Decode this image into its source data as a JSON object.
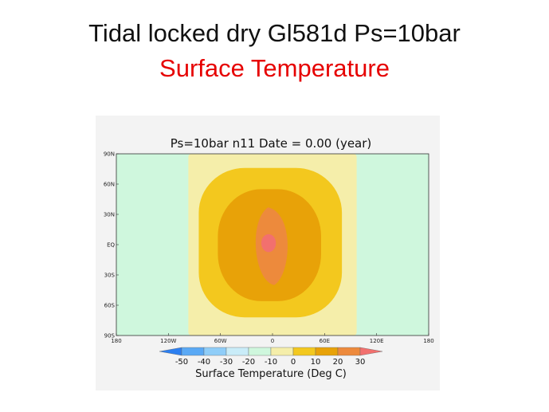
{
  "slide": {
    "title": "Tidal locked dry Gl581d  Ps=10bar",
    "subtitle": "Surface Temperature",
    "title_color": "#111111",
    "subtitle_color": "#e60000"
  },
  "chart_data": {
    "type": "heatmap",
    "title": "Ps=10bar n11    Date = 0.00 (year)",
    "x_ticks": [
      "180",
      "120W",
      "60W",
      "0",
      "60E",
      "120E",
      "180"
    ],
    "y_ticks": [
      "90N",
      "60N",
      "30N",
      "EQ",
      "30S",
      "60S",
      "90S"
    ],
    "x_range_deg": [
      -180,
      180
    ],
    "y_range_deg": [
      -90,
      90
    ],
    "colorbar": {
      "title": "Surface Temperature (Deg C)",
      "labels": [
        "-50",
        "-40",
        "-30",
        "-20",
        "-10",
        "0",
        "10",
        "20",
        "30"
      ],
      "levels": [
        -50,
        -40,
        -30,
        -20,
        -10,
        0,
        10,
        20,
        30
      ],
      "colors": [
        "#2c7ff0",
        "#5aa9f5",
        "#8fcdf8",
        "#c9ecf8",
        "#cff7dd",
        "#f5eeaa",
        "#f3c81e",
        "#e8a208",
        "#ed8a3c",
        "#f2706e"
      ]
    },
    "contours": [
      {
        "level": "-20 to -10",
        "color": "#cff7dd",
        "lon_range": [
          -180,
          180
        ],
        "lat_range": [
          -90,
          90
        ]
      },
      {
        "level": "-10 to 0",
        "color": "#f5eeaa",
        "lon_range": [
          -97,
          97
        ],
        "lat_range": [
          -90,
          90
        ]
      },
      {
        "level": "0 to 10",
        "color": "#f3c81e",
        "lon_range": [
          -85,
          80
        ],
        "lat_range": [
          -72,
          76
        ]
      },
      {
        "level": "10 to 20",
        "color": "#e8a208",
        "lon_range": [
          -63,
          56
        ],
        "lat_range": [
          -56,
          55
        ]
      },
      {
        "level": "20 to 30",
        "color": "#ed8a3c",
        "lon_range": [
          -23,
          20
        ],
        "lat_range": [
          -40,
          37
        ]
      },
      {
        "level": "30 to 40",
        "color": "#f2706e",
        "lon_range": [
          -12,
          3
        ],
        "lat_range": [
          -5,
          8
        ]
      }
    ],
    "grid": false
  }
}
